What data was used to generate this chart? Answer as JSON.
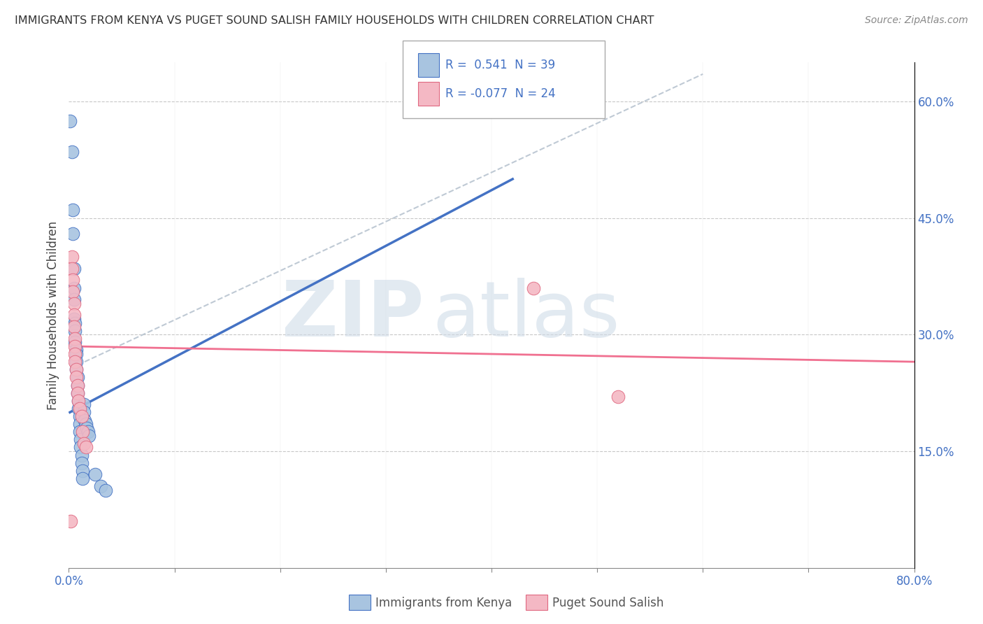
{
  "title": "IMMIGRANTS FROM KENYA VS PUGET SOUND SALISH FAMILY HOUSEHOLDS WITH CHILDREN CORRELATION CHART",
  "source": "Source: ZipAtlas.com",
  "ylabel": "Family Households with Children",
  "xlim": [
    0.0,
    0.8
  ],
  "ylim": [
    0.0,
    0.65
  ],
  "blue_color": "#a8c4e0",
  "pink_color": "#f4b8c4",
  "blue_line_color": "#4472c4",
  "pink_line_color": "#f07090",
  "dashed_line_color": "#b8c4d0",
  "blue_scatter": [
    [
      0.001,
      0.575
    ],
    [
      0.003,
      0.535
    ],
    [
      0.004,
      0.46
    ],
    [
      0.004,
      0.43
    ],
    [
      0.005,
      0.385
    ],
    [
      0.005,
      0.36
    ],
    [
      0.005,
      0.345
    ],
    [
      0.005,
      0.32
    ],
    [
      0.006,
      0.315
    ],
    [
      0.006,
      0.305
    ],
    [
      0.006,
      0.29
    ],
    [
      0.007,
      0.28
    ],
    [
      0.007,
      0.275
    ],
    [
      0.007,
      0.265
    ],
    [
      0.007,
      0.255
    ],
    [
      0.008,
      0.245
    ],
    [
      0.008,
      0.235
    ],
    [
      0.008,
      0.225
    ],
    [
      0.009,
      0.215
    ],
    [
      0.009,
      0.205
    ],
    [
      0.01,
      0.195
    ],
    [
      0.01,
      0.185
    ],
    [
      0.01,
      0.175
    ],
    [
      0.011,
      0.165
    ],
    [
      0.011,
      0.155
    ],
    [
      0.012,
      0.145
    ],
    [
      0.012,
      0.135
    ],
    [
      0.013,
      0.125
    ],
    [
      0.013,
      0.115
    ],
    [
      0.014,
      0.21
    ],
    [
      0.014,
      0.2
    ],
    [
      0.015,
      0.19
    ],
    [
      0.016,
      0.185
    ],
    [
      0.017,
      0.18
    ],
    [
      0.018,
      0.175
    ],
    [
      0.019,
      0.17
    ],
    [
      0.025,
      0.12
    ],
    [
      0.03,
      0.105
    ],
    [
      0.035,
      0.1
    ]
  ],
  "pink_scatter": [
    [
      0.002,
      0.06
    ],
    [
      0.003,
      0.4
    ],
    [
      0.003,
      0.385
    ],
    [
      0.004,
      0.37
    ],
    [
      0.004,
      0.355
    ],
    [
      0.005,
      0.34
    ],
    [
      0.005,
      0.325
    ],
    [
      0.005,
      0.31
    ],
    [
      0.006,
      0.295
    ],
    [
      0.006,
      0.285
    ],
    [
      0.006,
      0.275
    ],
    [
      0.006,
      0.265
    ],
    [
      0.007,
      0.255
    ],
    [
      0.007,
      0.245
    ],
    [
      0.008,
      0.235
    ],
    [
      0.008,
      0.225
    ],
    [
      0.009,
      0.215
    ],
    [
      0.01,
      0.205
    ],
    [
      0.012,
      0.195
    ],
    [
      0.013,
      0.175
    ],
    [
      0.014,
      0.16
    ],
    [
      0.016,
      0.155
    ],
    [
      0.44,
      0.36
    ],
    [
      0.52,
      0.22
    ]
  ],
  "blue_line_x": [
    0.001,
    0.42
  ],
  "blue_line_y": [
    0.2,
    0.5
  ],
  "pink_line_x": [
    0.0,
    0.8
  ],
  "pink_line_y": [
    0.285,
    0.265
  ],
  "dash_line_x": [
    0.015,
    0.6
  ],
  "dash_line_y": [
    0.265,
    0.635
  ]
}
